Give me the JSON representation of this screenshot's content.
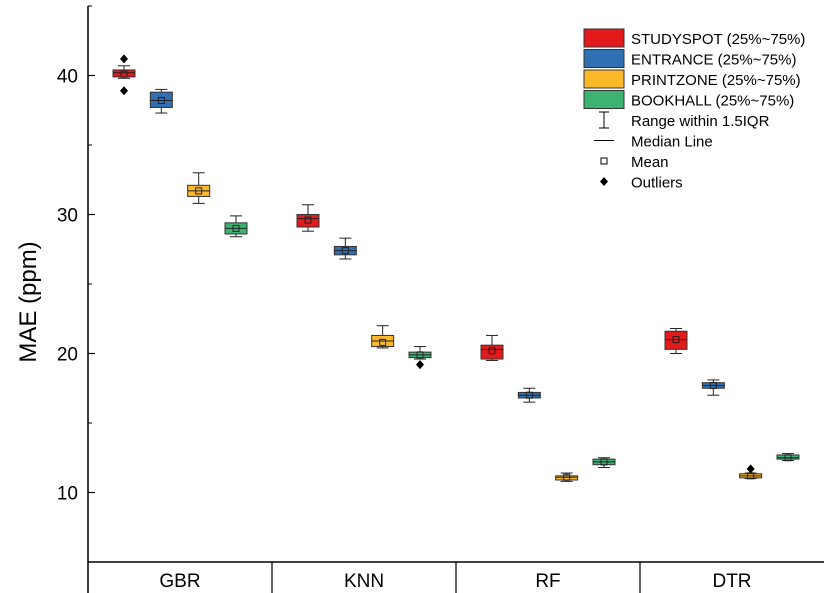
{
  "chart_data": {
    "type": "box",
    "ylabel": "MAE (ppm)",
    "ylim": [
      5,
      45
    ],
    "y_ticks": [
      10,
      20,
      30,
      40
    ],
    "categories": [
      "GBR",
      "KNN",
      "RF",
      "DTR"
    ],
    "series": [
      {
        "name": "STUDYSPOT (25%~75%)",
        "color": "#e31a1c",
        "boxes": [
          {
            "whisker_low": 39.8,
            "q1": 39.9,
            "median": 40.2,
            "mean": 40.1,
            "q3": 40.4,
            "whisker_high": 40.7,
            "outliers": [
              41.2,
              38.9
            ]
          },
          {
            "whisker_low": 28.8,
            "q1": 29.1,
            "median": 29.7,
            "mean": 29.6,
            "q3": 30.0,
            "whisker_high": 30.7,
            "outliers": []
          },
          {
            "whisker_low": 19.5,
            "q1": 19.6,
            "median": 20.3,
            "mean": 20.2,
            "q3": 20.6,
            "whisker_high": 21.3,
            "outliers": []
          },
          {
            "whisker_low": 20.0,
            "q1": 20.3,
            "median": 21.0,
            "mean": 21.0,
            "q3": 21.6,
            "whisker_high": 21.8,
            "outliers": []
          }
        ]
      },
      {
        "name": "ENTRANCE (25%~75%)",
        "color": "#2f6fb2",
        "boxes": [
          {
            "whisker_low": 37.3,
            "q1": 37.7,
            "median": 38.2,
            "mean": 38.2,
            "q3": 38.8,
            "whisker_high": 39.0,
            "outliers": []
          },
          {
            "whisker_low": 26.8,
            "q1": 27.1,
            "median": 27.4,
            "mean": 27.4,
            "q3": 27.7,
            "whisker_high": 28.3,
            "outliers": []
          },
          {
            "whisker_low": 16.5,
            "q1": 16.8,
            "median": 17.0,
            "mean": 17.0,
            "q3": 17.2,
            "whisker_high": 17.5,
            "outliers": []
          },
          {
            "whisker_low": 17.0,
            "q1": 17.5,
            "median": 17.7,
            "mean": 17.7,
            "q3": 17.9,
            "whisker_high": 18.1,
            "outliers": []
          }
        ]
      },
      {
        "name": "PRINTZONE (25%~75%)",
        "color": "#fbb829",
        "boxes": [
          {
            "whisker_low": 30.8,
            "q1": 31.3,
            "median": 31.7,
            "mean": 31.7,
            "q3": 32.1,
            "whisker_high": 33.0,
            "outliers": []
          },
          {
            "whisker_low": 20.4,
            "q1": 20.5,
            "median": 20.9,
            "mean": 20.8,
            "q3": 21.3,
            "whisker_high": 22.0,
            "outliers": []
          },
          {
            "whisker_low": 10.8,
            "q1": 10.9,
            "median": 11.1,
            "mean": 11.1,
            "q3": 11.2,
            "whisker_high": 11.4,
            "outliers": []
          },
          {
            "whisker_low": 11.0,
            "q1": 11.05,
            "median": 11.2,
            "mean": 11.2,
            "q3": 11.35,
            "whisker_high": 11.4,
            "outliers": [
              11.7
            ]
          }
        ]
      },
      {
        "name": "BOOKHALL (25%~75%)",
        "color": "#3cb371",
        "boxes": [
          {
            "whisker_low": 28.4,
            "q1": 28.6,
            "median": 29.0,
            "mean": 29.0,
            "q3": 29.4,
            "whisker_high": 29.9,
            "outliers": []
          },
          {
            "whisker_low": 19.6,
            "q1": 19.7,
            "median": 19.9,
            "mean": 19.9,
            "q3": 20.1,
            "whisker_high": 20.5,
            "outliers": [
              19.2
            ]
          },
          {
            "whisker_low": 11.8,
            "q1": 12.0,
            "median": 12.2,
            "mean": 12.2,
            "q3": 12.4,
            "whisker_high": 12.5,
            "outliers": []
          },
          {
            "whisker_low": 12.3,
            "q1": 12.4,
            "median": 12.5,
            "mean": 12.5,
            "q3": 12.7,
            "whisker_high": 12.8,
            "outliers": []
          }
        ]
      }
    ],
    "legend": {
      "placement": "top-right",
      "extra_entries": [
        "Range within 1.5IQR",
        "Median Line",
        "Mean",
        "Outliers"
      ]
    }
  }
}
